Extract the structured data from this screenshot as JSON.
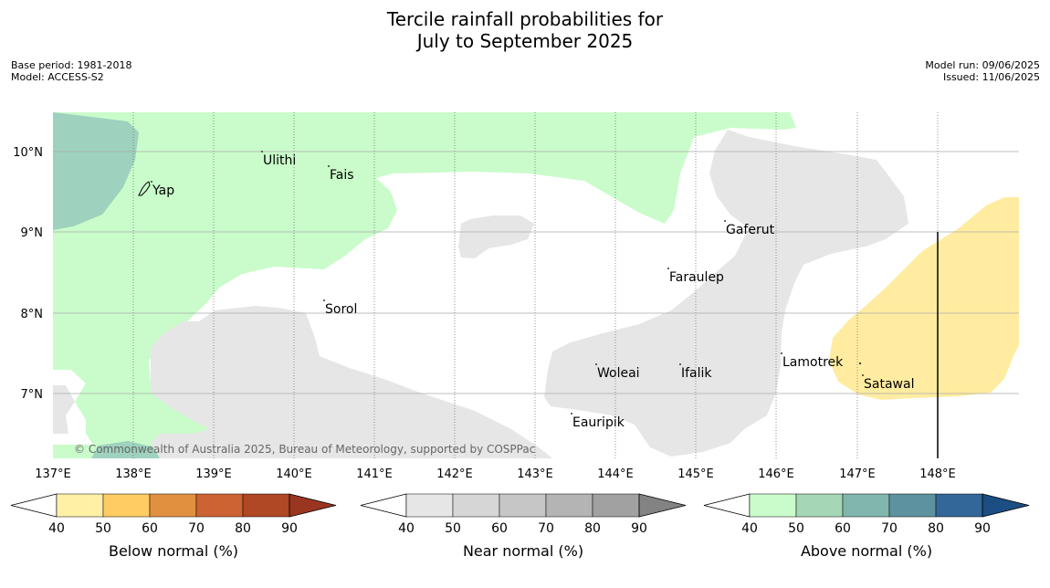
{
  "title_line1": "Tercile rainfall probabilities for",
  "title_line2": "July to September 2025",
  "meta_left": [
    "Base period: 1981-2018",
    "Model: ACCESS-S2"
  ],
  "meta_right": [
    "Model run: 09/06/2025",
    "Issued: 11/06/2025"
  ],
  "copyright": "© Commonwealth of Australia 2025, Bureau of Meteorology, supported by COSPPac",
  "lon_ticks": [
    "137°E",
    "138°E",
    "139°E",
    "140°E",
    "141°E",
    "142°E",
    "143°E",
    "144°E",
    "145°E",
    "146°E",
    "147°E",
    "148°E"
  ],
  "lat_ticks": [
    "10°N",
    "9°N",
    "8°N",
    "7°N"
  ],
  "places": [
    {
      "name": "Yap"
    },
    {
      "name": "Ulithi"
    },
    {
      "name": "Fais"
    },
    {
      "name": "Gaferut"
    },
    {
      "name": "Faraulep"
    },
    {
      "name": "Sorol"
    },
    {
      "name": "Lamotrek"
    },
    {
      "name": "Woleai"
    },
    {
      "name": "Ifalik"
    },
    {
      "name": "Satawal"
    },
    {
      "name": "Eauripik"
    }
  ],
  "colorbars": [
    {
      "label": "Below normal (%)",
      "ticks": [
        "40",
        "50",
        "60",
        "70",
        "80",
        "90"
      ],
      "colors": [
        "#fff0a6",
        "#fecc63",
        "#e0903f",
        "#cd6332",
        "#b04725",
        "#9a3521"
      ]
    },
    {
      "label": "Near normal (%)",
      "ticks": [
        "40",
        "50",
        "60",
        "70",
        "80",
        "90"
      ],
      "colors": [
        "#e6e6e6",
        "#d6d6d6",
        "#c6c6c6",
        "#b4b4b4",
        "#a1a1a1",
        "#838383"
      ]
    },
    {
      "label": "Above normal (%)",
      "ticks": [
        "40",
        "50",
        "60",
        "70",
        "80",
        "90"
      ],
      "colors": [
        "#c9fcca",
        "#a5d6b5",
        "#80b6ae",
        "#5d93a0",
        "#33679a",
        "#1b4e82"
      ]
    }
  ],
  "map_colors": {
    "above_40_50": "#c9fcca",
    "above_50_60": "#9ed2be",
    "near_40_50": "#e6e6e6",
    "below_40_50": "#ffeca0",
    "grid": "#aaaaaa"
  }
}
